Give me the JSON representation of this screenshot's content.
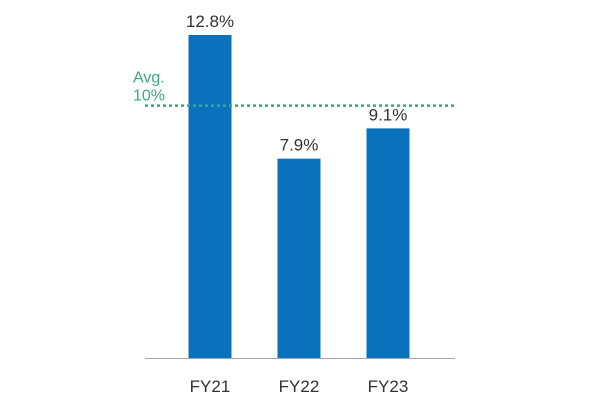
{
  "chart_data": {
    "type": "bar",
    "title": "",
    "xlabel": "",
    "ylabel": "",
    "categories": [
      "FY21",
      "FY22",
      "FY23"
    ],
    "values": [
      12.8,
      7.9,
      9.1
    ],
    "value_labels": [
      "12.8%",
      "7.9%",
      "9.1%"
    ],
    "ylim": [
      0,
      12.8
    ],
    "grid": false,
    "reference_line": {
      "value": 10,
      "label_line1": "Avg.",
      "label_line2": "10%",
      "style": "dotted"
    },
    "colors": {
      "bar": "#0a72bd",
      "average": "#3aaa7a",
      "axis": "#a6a6a6",
      "text": "#333333"
    }
  }
}
